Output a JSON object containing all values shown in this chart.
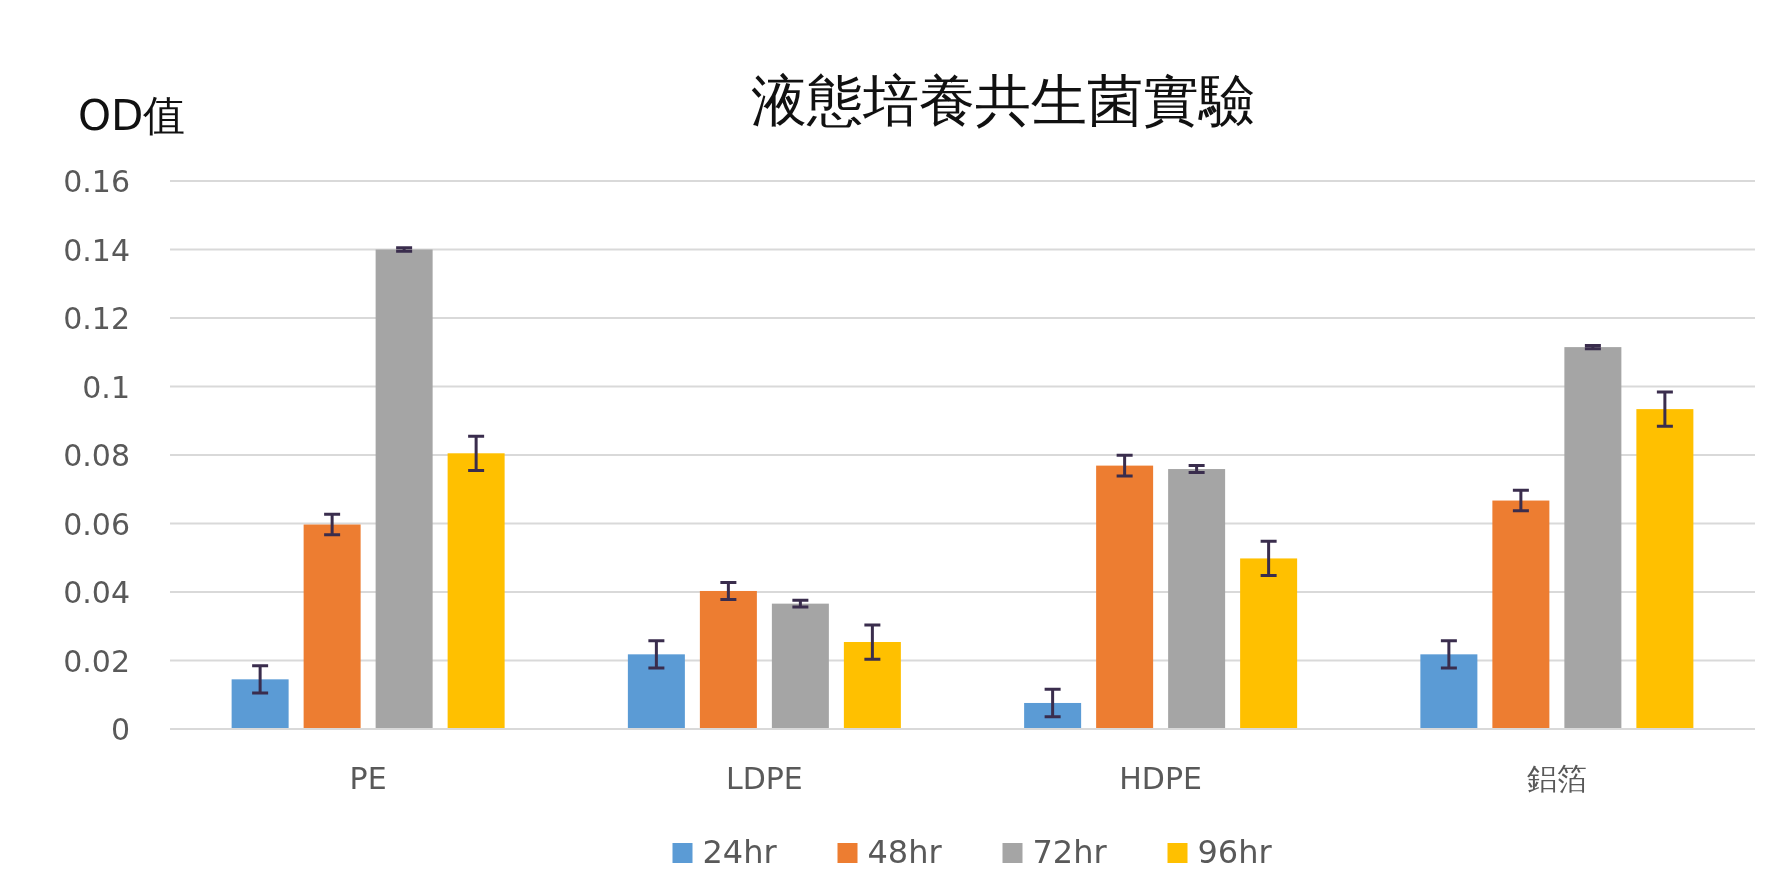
{
  "chart_data": {
    "type": "bar",
    "title": "液態培養共生菌實驗",
    "ylabel": "OD值",
    "categories": [
      "PE",
      "LDPE",
      "HDPE",
      "鋁箔"
    ],
    "series": [
      {
        "name": "24hr",
        "color": "#5b9bd5",
        "values": [
          0.0145,
          0.0218,
          0.0076,
          0.0218
        ],
        "errors": [
          0.004,
          0.004,
          0.004,
          0.004
        ]
      },
      {
        "name": "48hr",
        "color": "#ed7d31",
        "values": [
          0.0597,
          0.0403,
          0.0769,
          0.0667
        ],
        "errors": [
          0.003,
          0.0025,
          0.003,
          0.003
        ]
      },
      {
        "name": "72hr",
        "color": "#a5a5a5",
        "values": [
          0.14,
          0.0366,
          0.0759,
          0.1115
        ],
        "errors": [
          0.0005,
          0.001,
          0.001,
          0.0005
        ]
      },
      {
        "name": "96hr",
        "color": "#ffc000",
        "values": [
          0.0805,
          0.0254,
          0.0498,
          0.0934
        ],
        "errors": [
          0.005,
          0.005,
          0.005,
          0.005
        ]
      }
    ],
    "ylim": [
      0,
      0.16
    ],
    "yticks": [
      0,
      0.02,
      0.04,
      0.06,
      0.08,
      0.1,
      0.12,
      0.14,
      0.16
    ],
    "grid": "y",
    "legend": "bottom"
  }
}
